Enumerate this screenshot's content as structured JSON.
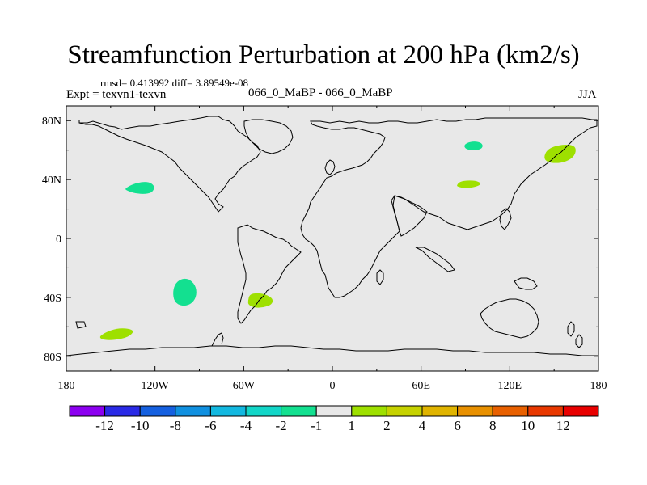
{
  "title": "Streamfunction Perturbation at 200 hPa (km2/s)",
  "stats_line": "rmsd= 0.413992 diff= 3.89549e-08",
  "left_subtitle": "Expt = texvn1-texvn",
  "center_subtitle": "066_0_MaBP - 066_0_MaBP",
  "right_subtitle": "JJA",
  "chart_data": {
    "type": "map-contour",
    "field": "streamfunction perturbation",
    "level": "200 hPa",
    "units": "km2/s",
    "season": "JJA",
    "lon_range": [
      -180,
      180
    ],
    "lat_range": [
      -90,
      90
    ],
    "x_ticks": [
      {
        "value": -180,
        "label": "180"
      },
      {
        "value": -120,
        "label": "120W"
      },
      {
        "value": -60,
        "label": "60W"
      },
      {
        "value": 0,
        "label": "0"
      },
      {
        "value": 60,
        "label": "60E"
      },
      {
        "value": 120,
        "label": "120E"
      },
      {
        "value": 180,
        "label": "180"
      }
    ],
    "y_ticks": [
      {
        "value": 80,
        "label": "80N"
      },
      {
        "value": 40,
        "label": "40N"
      },
      {
        "value": 0,
        "label": "0"
      },
      {
        "value": -40,
        "label": "40S"
      },
      {
        "value": -80,
        "label": "80S"
      }
    ],
    "colorbar": {
      "labels": [
        "-12",
        "-10",
        "-8",
        "-6",
        "-4",
        "-2",
        "-1",
        "1",
        "2",
        "4",
        "6",
        "8",
        "10",
        "12"
      ],
      "colors": [
        "#8c00f0",
        "#2a2ae6",
        "#1560e0",
        "#1090e0",
        "#12b8e0",
        "#12d6c8",
        "#13e090",
        "#e8e8e8",
        "#9ee000",
        "#c6d200",
        "#e0b400",
        "#e89000",
        "#e86000",
        "#e83800",
        "#e80000"
      ]
    },
    "anomalies": [
      {
        "name": "north-pacific-negative",
        "lon": -130,
        "lat": 34,
        "color": "#13e090",
        "path": [
          [
            -140,
            34
          ],
          [
            -135,
            37
          ],
          [
            -128,
            38.5
          ],
          [
            -123,
            38
          ],
          [
            -120,
            35
          ],
          [
            -122,
            31
          ],
          [
            -128,
            30
          ],
          [
            -135,
            31
          ],
          [
            -140,
            33
          ]
        ]
      },
      {
        "name": "south-pacific-negative",
        "lon": -100,
        "lat": -36,
        "color": "#13e090",
        "path": [
          [
            -108,
            -36
          ],
          [
            -106,
            -30
          ],
          [
            -101,
            -27
          ],
          [
            -96,
            -28
          ],
          [
            -92,
            -33
          ],
          [
            -92,
            -40
          ],
          [
            -96,
            -45
          ],
          [
            -102,
            -46
          ],
          [
            -107,
            -43
          ]
        ]
      },
      {
        "name": "south-atlantic-positive",
        "lon": -49,
        "lat": -42,
        "color": "#9ee000",
        "path": [
          [
            -57,
            -42
          ],
          [
            -56,
            -38
          ],
          [
            -51,
            -37
          ],
          [
            -45,
            -38
          ],
          [
            -40,
            -41
          ],
          [
            -41,
            -45
          ],
          [
            -47,
            -47
          ],
          [
            -53,
            -47
          ],
          [
            -57,
            -45
          ]
        ]
      },
      {
        "name": "southeast-pacific-positive",
        "lon": -145,
        "lat": -65,
        "color": "#9ee000",
        "path": [
          [
            -158,
            -67
          ],
          [
            -154,
            -64
          ],
          [
            -146,
            -61
          ],
          [
            -138,
            -61
          ],
          [
            -134,
            -63
          ],
          [
            -138,
            -67
          ],
          [
            -147,
            -69
          ],
          [
            -155,
            -69
          ]
        ]
      },
      {
        "name": "siberia-negative",
        "lon": 95,
        "lat": 63,
        "color": "#13e090",
        "path": [
          [
            89,
            63
          ],
          [
            91,
            65
          ],
          [
            96,
            66
          ],
          [
            101,
            65
          ],
          [
            102,
            62
          ],
          [
            99,
            60
          ],
          [
            93,
            60
          ],
          [
            90,
            61
          ]
        ]
      },
      {
        "name": "central-asia-positive",
        "lon": 93,
        "lat": 37,
        "color": "#9ee000",
        "path": [
          [
            84,
            36
          ],
          [
            86,
            38.5
          ],
          [
            92,
            39.5
          ],
          [
            98,
            39
          ],
          [
            101,
            37
          ],
          [
            97,
            35
          ],
          [
            90,
            34
          ],
          [
            85,
            35
          ]
        ]
      },
      {
        "name": "northwest-pacific-positive",
        "lon": 158,
        "lat": 57,
        "color": "#9ee000",
        "path": [
          [
            143,
            55
          ],
          [
            145,
            60
          ],
          [
            151,
            63
          ],
          [
            160,
            64
          ],
          [
            165,
            62
          ],
          [
            164,
            56
          ],
          [
            158,
            52
          ],
          [
            151,
            51
          ],
          [
            145,
            52
          ]
        ]
      }
    ]
  }
}
